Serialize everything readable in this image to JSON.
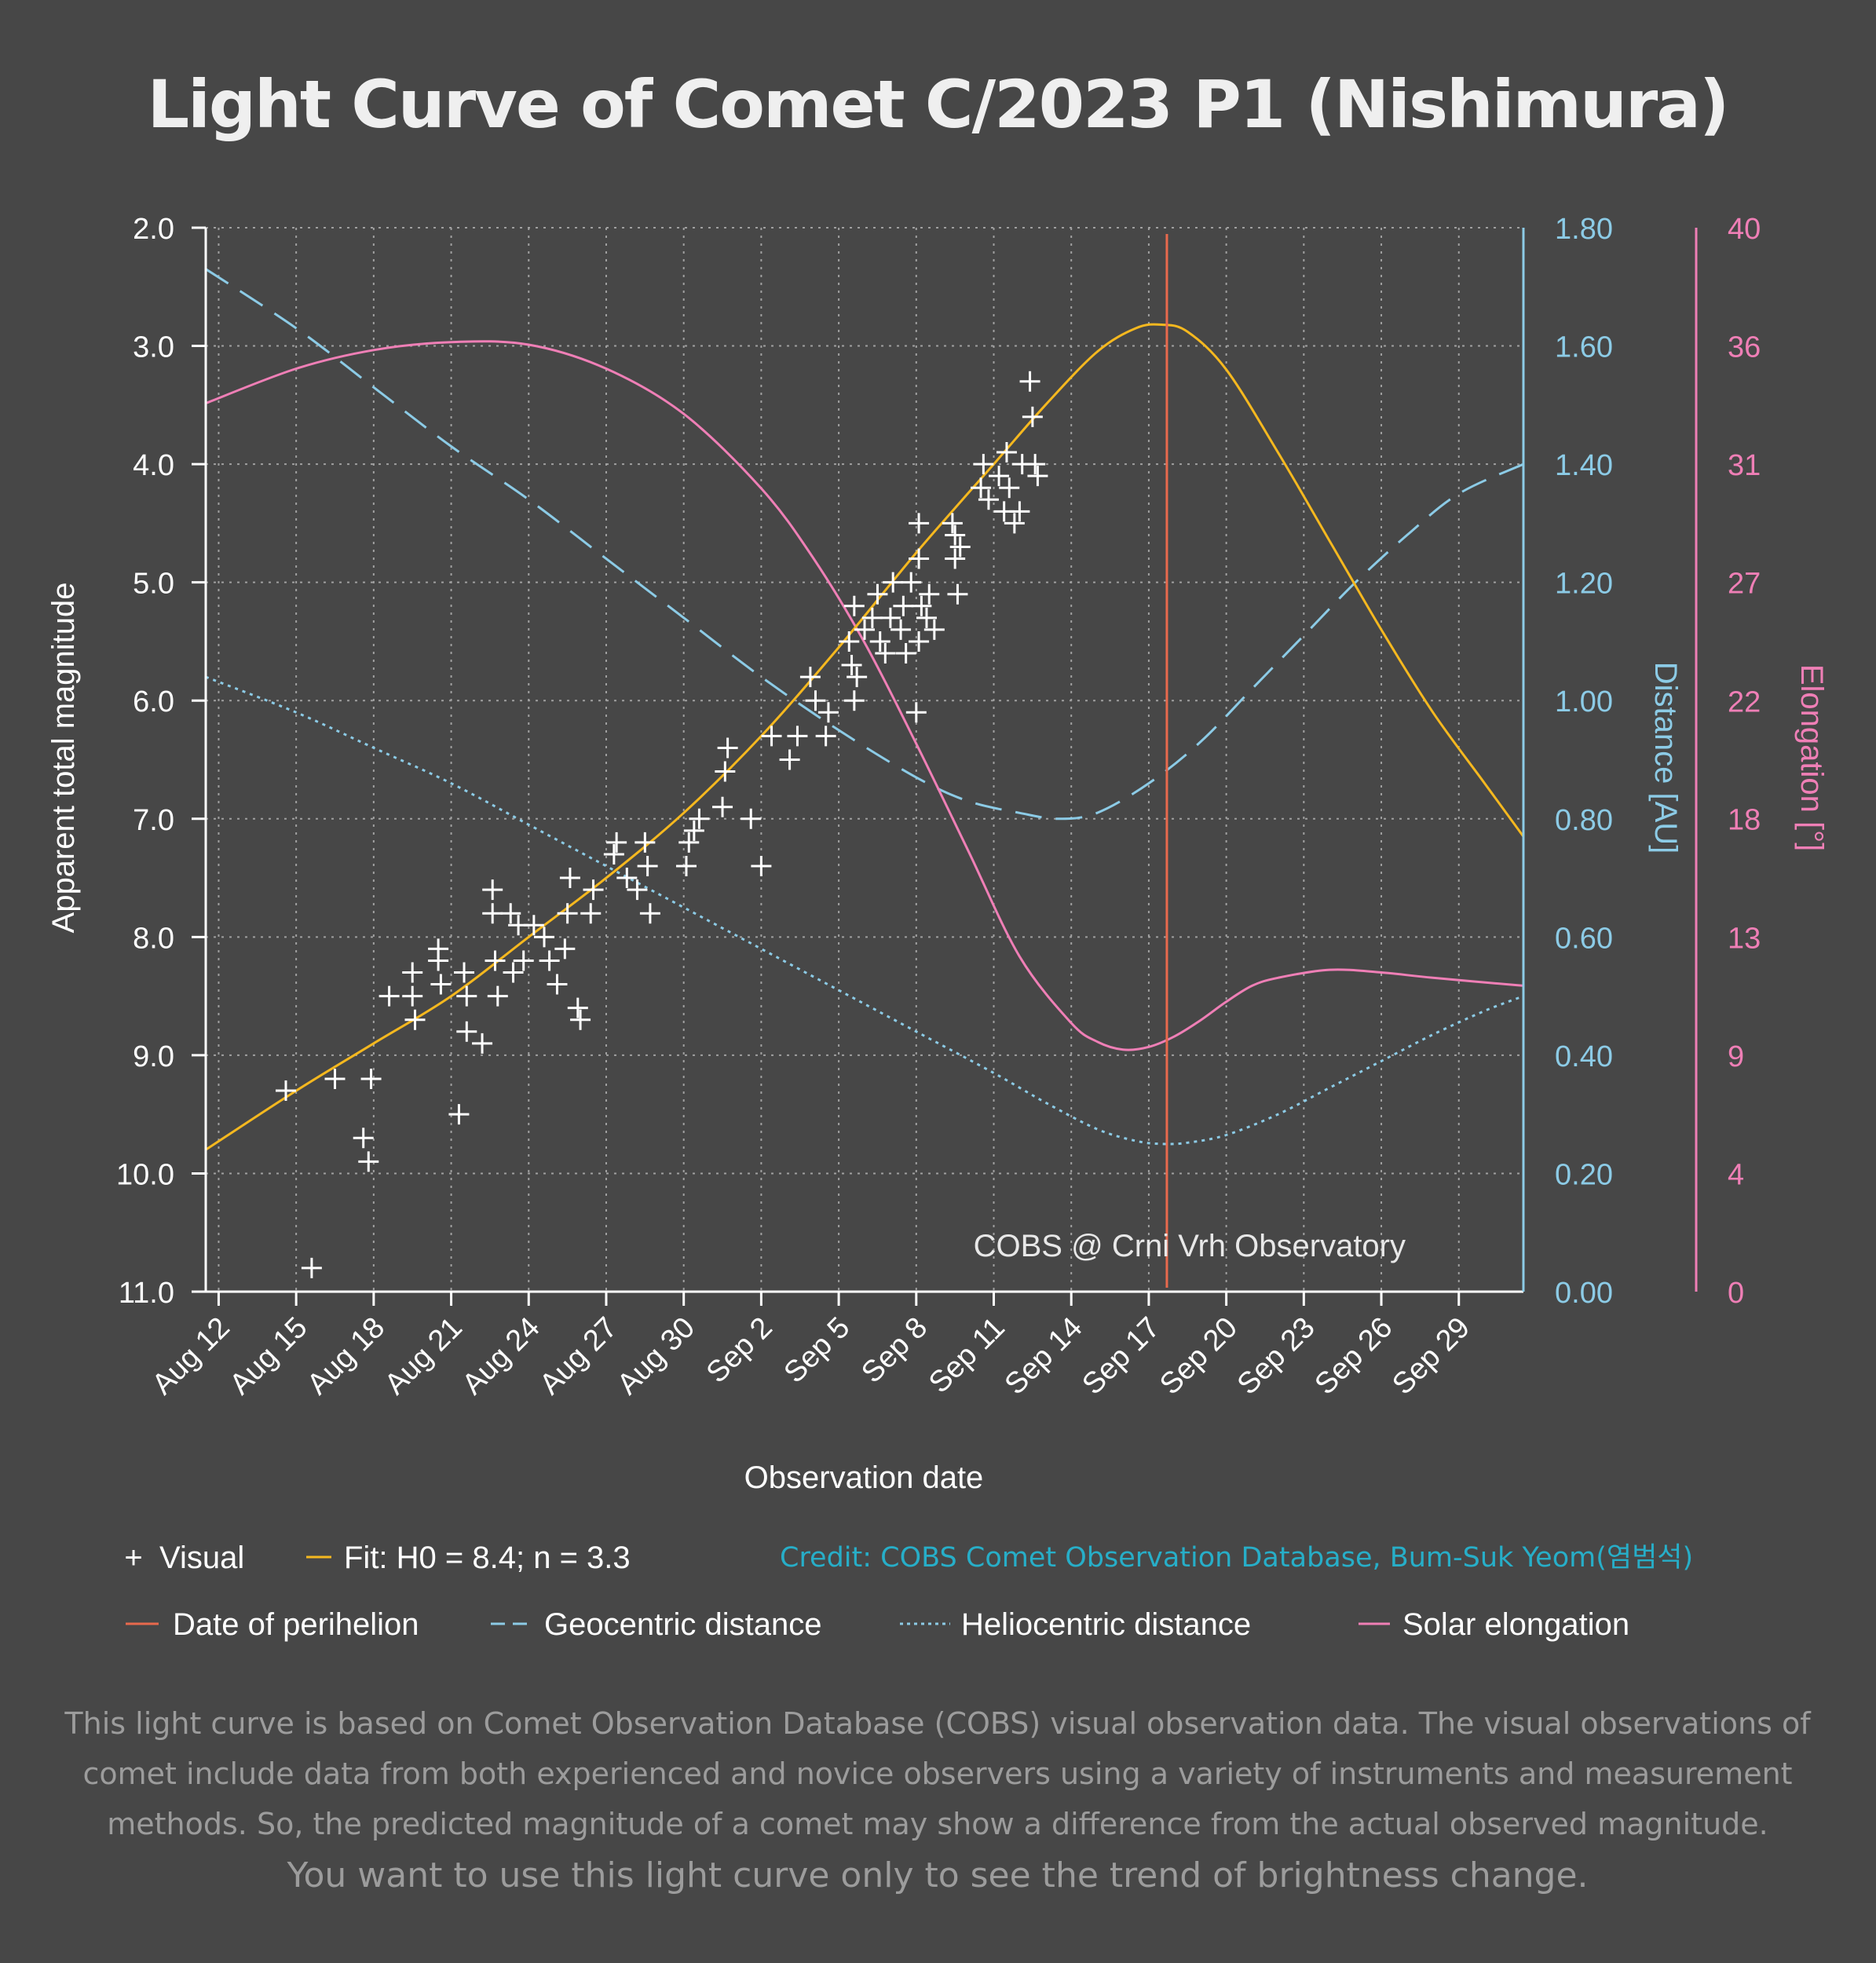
{
  "title": "Light Curve of Comet C/2023 P1 (Nishimura)",
  "colors": {
    "background": "#474747",
    "fit": "#f5b81f",
    "perihelion": "#e8694d",
    "geocentric": "#8ccbe6",
    "heliocentric": "#8ccbe6",
    "elongation": "#ef7fb6",
    "credit": "#27aec8",
    "observation": "#ffffff"
  },
  "chart_data": {
    "type": "scatter",
    "title": "Light Curve of Comet C/2023 P1 (Nishimura)",
    "xlabel": "Observation date",
    "ylabel": "Apparent total magnitude",
    "y2label": "Distance [AU]",
    "y3label": "Elongation [°]",
    "x_unit": "days after Aug 12, 2023",
    "xlim": [
      -0.5,
      50.5
    ],
    "ylim": [
      2.0,
      11.0
    ],
    "y_inverted": true,
    "y2lim": [
      0.0,
      1.8
    ],
    "y3lim": [
      0,
      40
    ],
    "x_ticks": [
      0,
      3,
      6,
      9,
      12,
      15,
      18,
      21,
      24,
      27,
      30,
      33,
      36,
      39,
      42,
      45,
      48
    ],
    "x_tick_labels": [
      "Aug 12",
      "Aug 15",
      "Aug 18",
      "Aug 21",
      "Aug 24",
      "Aug 27",
      "Aug 30",
      "Sep 2",
      "Sep 5",
      "Sep 8",
      "Sep 11",
      "Sep 14",
      "Sep 17",
      "Sep 20",
      "Sep 23",
      "Sep 26",
      "Sep 29"
    ],
    "y_ticks": [
      2,
      3,
      4,
      5,
      6,
      7,
      8,
      9,
      10,
      11
    ],
    "y_tick_labels": [
      "2.0",
      "3.0",
      "4.0",
      "5.0",
      "6.0",
      "7.0",
      "8.0",
      "9.0",
      "10.0",
      "11.0"
    ],
    "y2_ticks": [
      0,
      0.2,
      0.4,
      0.6,
      0.8,
      1.0,
      1.2,
      1.4,
      1.6,
      1.8
    ],
    "y2_tick_labels": [
      "0.00",
      "0.20",
      "0.40",
      "0.60",
      "0.80",
      "1.00",
      "1.20",
      "1.40",
      "1.60",
      "1.80"
    ],
    "y3_ticks": [
      0,
      4.44,
      8.89,
      13.33,
      17.78,
      22.22,
      26.67,
      31.11,
      35.56,
      40
    ],
    "y3_tick_labels": [
      "0",
      "4",
      "9",
      "13",
      "18",
      "22",
      "27",
      "31",
      "36",
      "40"
    ],
    "grid": true,
    "annotation": "COBS @ Crni Vrh Observatory",
    "perihelion_day": 36.7,
    "series": [
      {
        "name": "Visual",
        "kind": "points",
        "points": [
          [
            2.6,
            9.3
          ],
          [
            3.6,
            10.8
          ],
          [
            4.5,
            9.2
          ],
          [
            5.6,
            9.7
          ],
          [
            5.8,
            9.9
          ],
          [
            5.9,
            9.2
          ],
          [
            6.6,
            8.5
          ],
          [
            7.5,
            8.3
          ],
          [
            7.5,
            8.5
          ],
          [
            7.6,
            8.7
          ],
          [
            8.5,
            8.1
          ],
          [
            8.5,
            8.2
          ],
          [
            8.6,
            8.4
          ],
          [
            9.3,
            9.5
          ],
          [
            9.5,
            8.3
          ],
          [
            9.6,
            8.5
          ],
          [
            9.6,
            8.8
          ],
          [
            10.2,
            8.9
          ],
          [
            10.6,
            7.6
          ],
          [
            10.6,
            7.8
          ],
          [
            10.7,
            8.2
          ],
          [
            10.8,
            8.5
          ],
          [
            11.3,
            7.8
          ],
          [
            11.4,
            8.3
          ],
          [
            11.6,
            7.9
          ],
          [
            11.8,
            8.2
          ],
          [
            12.2,
            7.9
          ],
          [
            12.6,
            8.0
          ],
          [
            12.8,
            8.2
          ],
          [
            13.1,
            8.4
          ],
          [
            13.4,
            8.1
          ],
          [
            13.5,
            7.8
          ],
          [
            13.6,
            7.5
          ],
          [
            13.9,
            8.6
          ],
          [
            14.0,
            8.7
          ],
          [
            14.4,
            7.8
          ],
          [
            14.5,
            7.6
          ],
          [
            15.3,
            7.3
          ],
          [
            15.4,
            7.2
          ],
          [
            15.8,
            7.5
          ],
          [
            16.2,
            7.6
          ],
          [
            16.5,
            7.2
          ],
          [
            16.6,
            7.4
          ],
          [
            16.7,
            7.8
          ],
          [
            18.1,
            7.4
          ],
          [
            18.2,
            7.2
          ],
          [
            18.4,
            7.1
          ],
          [
            18.6,
            7.0
          ],
          [
            19.5,
            6.9
          ],
          [
            19.6,
            6.6
          ],
          [
            19.7,
            6.4
          ],
          [
            20.6,
            7.0
          ],
          [
            21.0,
            7.4
          ],
          [
            21.4,
            6.3
          ],
          [
            22.1,
            6.5
          ],
          [
            22.4,
            6.3
          ],
          [
            22.9,
            5.8
          ],
          [
            23.1,
            6.0
          ],
          [
            23.5,
            6.3
          ],
          [
            23.6,
            6.1
          ],
          [
            24.4,
            5.5
          ],
          [
            24.5,
            5.7
          ],
          [
            24.6,
            6.0
          ],
          [
            24.6,
            5.2
          ],
          [
            24.7,
            5.8
          ],
          [
            25.0,
            5.4
          ],
          [
            25.3,
            5.3
          ],
          [
            25.5,
            5.1
          ],
          [
            25.6,
            5.5
          ],
          [
            25.8,
            5.6
          ],
          [
            26.0,
            5.3
          ],
          [
            26.1,
            5.0
          ],
          [
            26.4,
            5.4
          ],
          [
            26.5,
            5.2
          ],
          [
            26.6,
            5.6
          ],
          [
            26.8,
            5.0
          ],
          [
            27.0,
            6.1
          ],
          [
            27.1,
            5.5
          ],
          [
            27.1,
            4.8
          ],
          [
            27.1,
            4.5
          ],
          [
            27.2,
            5.2
          ],
          [
            27.4,
            5.3
          ],
          [
            27.5,
            5.1
          ],
          [
            27.7,
            5.4
          ],
          [
            28.4,
            4.5
          ],
          [
            28.5,
            4.6
          ],
          [
            28.5,
            4.8
          ],
          [
            28.6,
            5.1
          ],
          [
            28.7,
            4.7
          ],
          [
            29.5,
            4.2
          ],
          [
            29.6,
            4.0
          ],
          [
            29.8,
            4.3
          ],
          [
            30.2,
            4.1
          ],
          [
            30.4,
            4.4
          ],
          [
            30.5,
            3.9
          ],
          [
            30.6,
            4.2
          ],
          [
            30.8,
            4.5
          ],
          [
            31.0,
            4.4
          ],
          [
            31.1,
            4.0
          ],
          [
            31.4,
            3.3
          ],
          [
            31.5,
            3.6
          ],
          [
            31.6,
            4.0
          ],
          [
            31.7,
            4.1
          ]
        ]
      },
      {
        "name": "Fit: H0 = 8.4; n = 3.3",
        "kind": "line",
        "axis": "magnitude",
        "x": [
          -0.5,
          3,
          6,
          9,
          12,
          15,
          18,
          21,
          24,
          27,
          30,
          32,
          34,
          35.5,
          36.5,
          37.5,
          39,
          41,
          43,
          45,
          47,
          49,
          50.5
        ],
        "y": [
          9.8,
          9.3,
          8.9,
          8.5,
          8.0,
          7.5,
          6.95,
          6.3,
          5.55,
          4.75,
          4.0,
          3.5,
          3.05,
          2.85,
          2.82,
          2.88,
          3.2,
          3.9,
          4.65,
          5.4,
          6.1,
          6.7,
          7.15
        ]
      },
      {
        "name": "Date of perihelion",
        "kind": "vline",
        "x": 36.7
      },
      {
        "name": "Geocentric distance",
        "kind": "line",
        "axis": "distance",
        "x": [
          -0.5,
          3,
          6,
          9,
          12,
          15,
          18,
          21,
          24,
          27,
          29,
          31,
          32.5,
          34,
          36,
          38,
          40,
          42,
          44,
          46,
          48,
          50.5
        ],
        "y": [
          1.73,
          1.63,
          1.53,
          1.43,
          1.34,
          1.24,
          1.14,
          1.04,
          0.95,
          0.87,
          0.83,
          0.81,
          0.8,
          0.81,
          0.86,
          0.93,
          1.02,
          1.11,
          1.2,
          1.28,
          1.35,
          1.4
        ]
      },
      {
        "name": "Heliocentric distance",
        "kind": "line",
        "axis": "distance",
        "x": [
          -0.5,
          3,
          6,
          9,
          12,
          15,
          18,
          21,
          24,
          27,
          30,
          32,
          34,
          35.5,
          36.5,
          37.5,
          39,
          41,
          43,
          45,
          47,
          49,
          50.5
        ],
        "y": [
          1.04,
          0.98,
          0.92,
          0.86,
          0.79,
          0.72,
          0.65,
          0.58,
          0.51,
          0.44,
          0.37,
          0.32,
          0.275,
          0.255,
          0.25,
          0.252,
          0.265,
          0.3,
          0.345,
          0.39,
          0.435,
          0.475,
          0.5
        ]
      },
      {
        "name": "Solar elongation",
        "kind": "line",
        "axis": "elongation",
        "x": [
          -0.5,
          3,
          6,
          9,
          12,
          15,
          18,
          21,
          23,
          25,
          27,
          29,
          31,
          33,
          34,
          35,
          36,
          37,
          38,
          39,
          40,
          41,
          43,
          45,
          47,
          50.5
        ],
        "y": [
          33.4,
          34.7,
          35.4,
          35.7,
          35.6,
          34.7,
          33.0,
          30.2,
          27.6,
          24.4,
          20.6,
          16.6,
          12.6,
          10.1,
          9.4,
          9.1,
          9.2,
          9.6,
          10.2,
          10.9,
          11.5,
          11.8,
          12.1,
          12.0,
          11.8,
          11.5
        ]
      }
    ]
  },
  "legend": {
    "visual": "Visual",
    "visual_marker": "+",
    "fit": "Fit: H0 = 8.4; n = 3.3",
    "perihelion": "Date of perihelion",
    "geocentric": "Geocentric distance",
    "heliocentric": "Heliocentric distance",
    "elongation": "Solar elongation"
  },
  "credit": "Credit: COBS Comet Observation Database, Bum-Suk Yeom(염범석)",
  "note": {
    "line1": "This light curve is based on Comet Observation Database (COBS) visual observation data. The visual observations of",
    "line2": "comet include data from both experienced and novice observers using a variety of instruments and measurement",
    "line3": "methods. So, the predicted magnitude of a comet may show a difference from the actual observed magnitude.",
    "line4": "You want to use this light curve only to see the trend of brightness change."
  }
}
